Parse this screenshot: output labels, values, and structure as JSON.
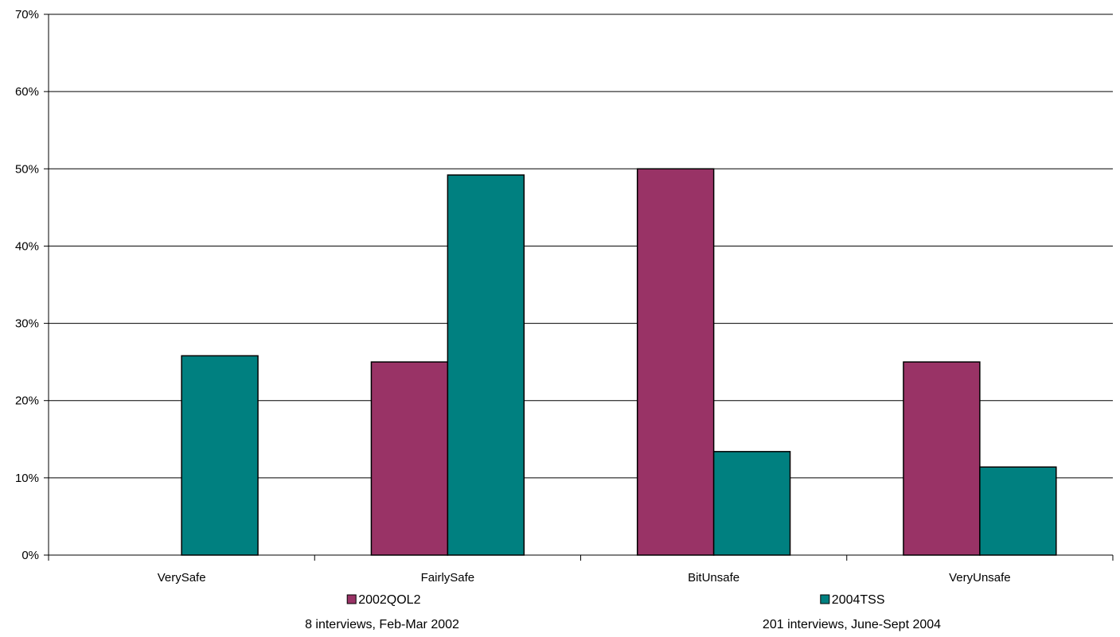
{
  "chart_data": {
    "type": "bar",
    "categories": [
      "VerySafe",
      "FairlySafe",
      "BitUnsafe",
      "VeryUnsafe"
    ],
    "series": [
      {
        "name": "2002QOL2",
        "values": [
          0,
          25,
          50,
          25
        ],
        "color": "#993366",
        "note": "8 interviews, Feb-Mar 2002"
      },
      {
        "name": "2004TSS",
        "values": [
          25.8,
          49.2,
          13.4,
          11.4
        ],
        "color": "#008080",
        "note": "201 interviews, June-Sept 2004"
      }
    ],
    "y_ticks": [
      "0%",
      "10%",
      "20%",
      "30%",
      "40%",
      "50%",
      "60%",
      "70%"
    ],
    "ylim": [
      0,
      70
    ],
    "grid": true,
    "legend_position": "bottom"
  }
}
